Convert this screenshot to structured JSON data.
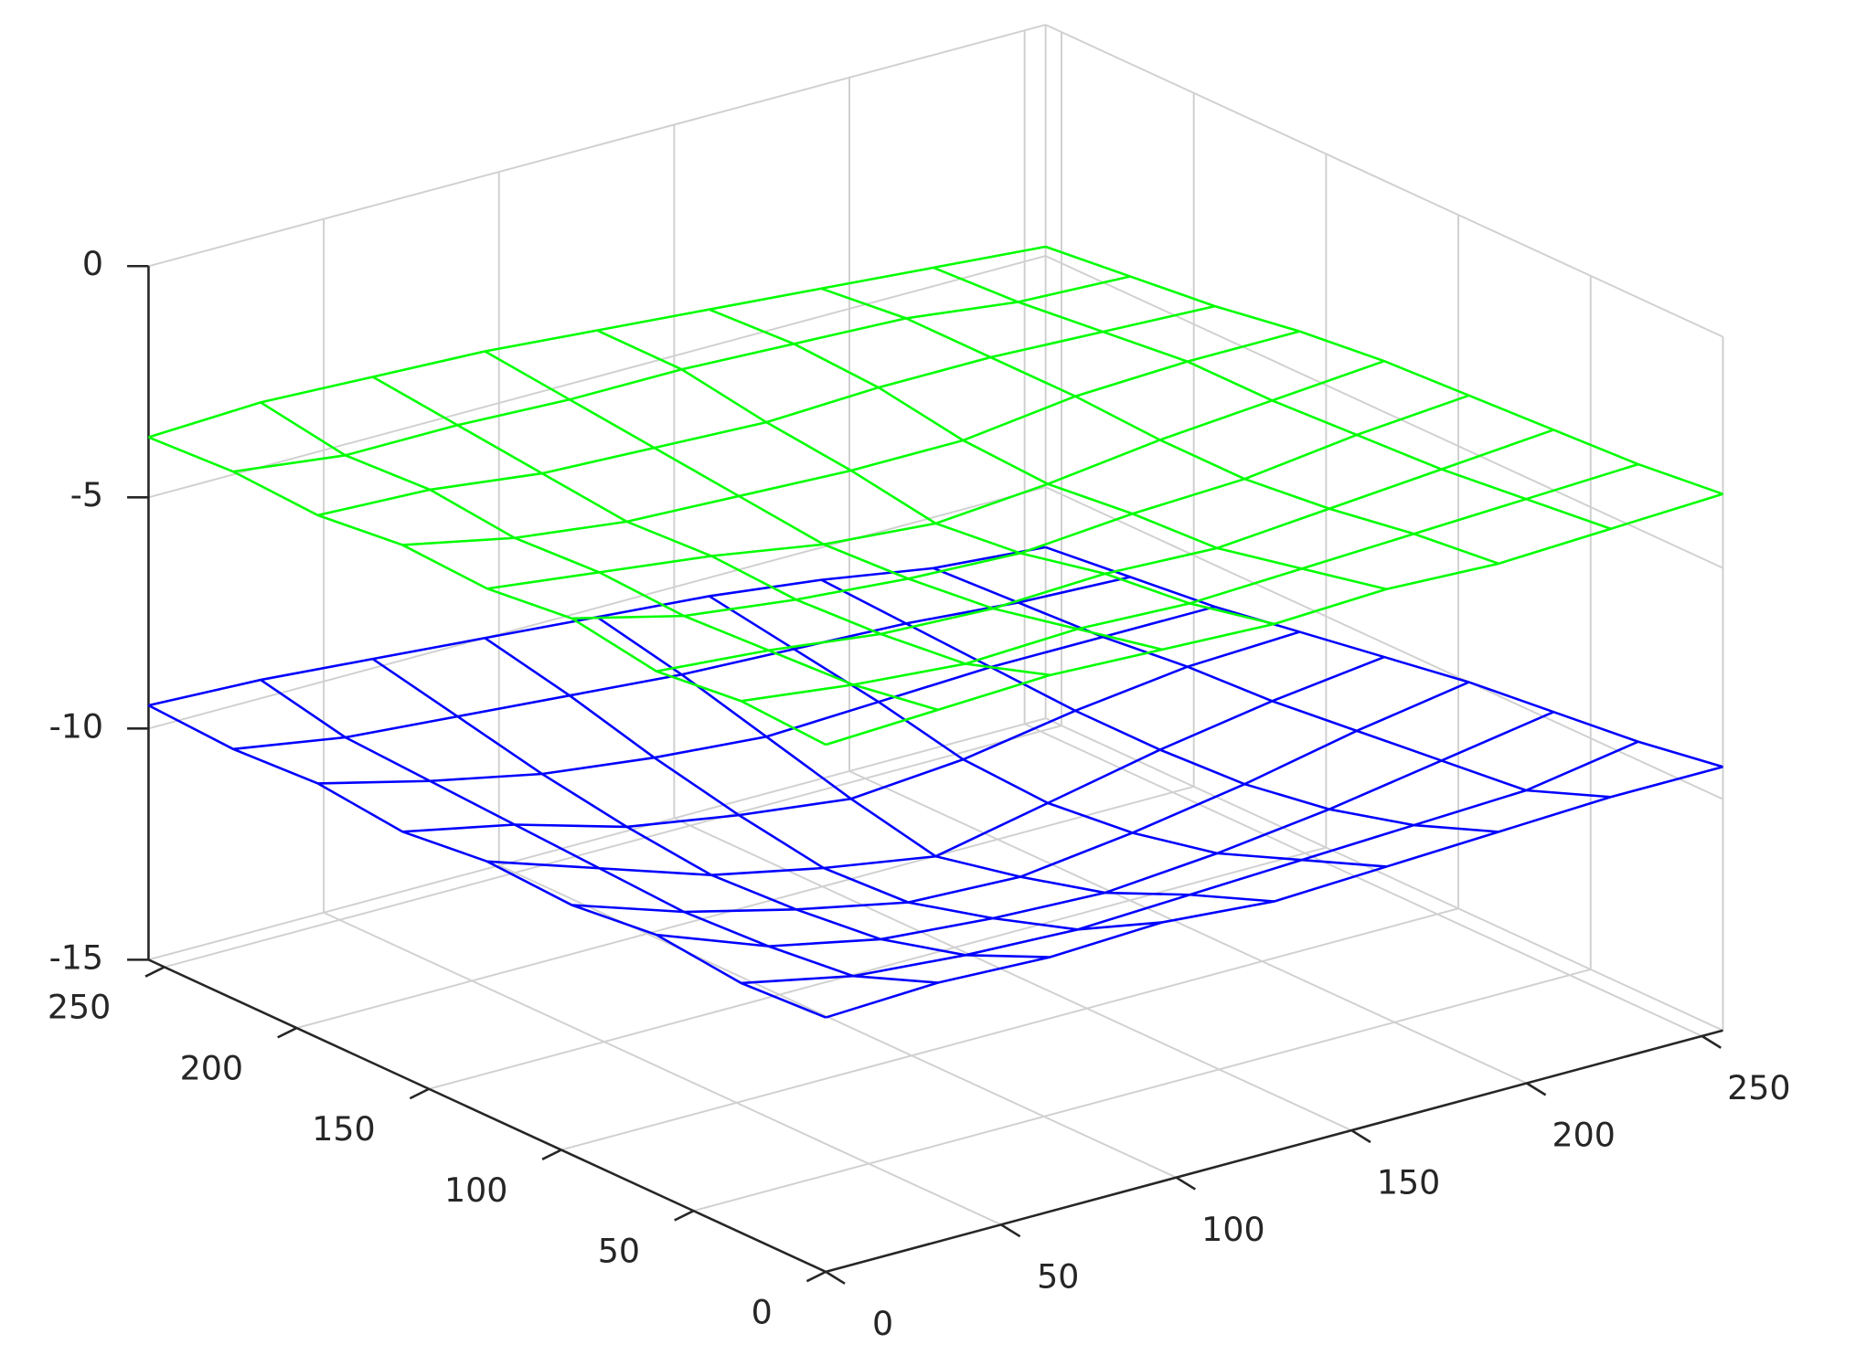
{
  "chart_data": {
    "type": "surface",
    "x": [
      0,
      32,
      64,
      96,
      128,
      160,
      192,
      224,
      256
    ],
    "y": [
      0,
      32,
      64,
      96,
      128,
      160,
      192,
      224,
      256
    ],
    "xlim": [
      0,
      256
    ],
    "ylim": [
      0,
      256
    ],
    "zlim": [
      -15,
      0
    ],
    "xticks": [
      0,
      50,
      100,
      150,
      200,
      250
    ],
    "yticks": [
      0,
      50,
      100,
      150,
      200,
      250
    ],
    "zticks": [
      -15,
      -10,
      -5,
      0
    ],
    "grid": true,
    "series": [
      {
        "color": "#00ff00",
        "z": [
          [
            -3.6,
            -3.5,
            -3.7,
            -3.4,
            -3.6,
            -3.5,
            -3.7,
            -3.6,
            -3.7
          ],
          [
            -3.5,
            -3.8,
            -3.9,
            -4.0,
            -3.9,
            -4.0,
            -3.8,
            -3.9,
            -3.6
          ],
          [
            -3.4,
            -4.0,
            -4.2,
            -4.3,
            -4.2,
            -4.3,
            -4.1,
            -3.9,
            -3.7
          ],
          [
            -3.5,
            -3.9,
            -4.3,
            -4.5,
            -4.6,
            -4.4,
            -4.2,
            -4.0,
            -3.8
          ],
          [
            -3.6,
            -4.0,
            -4.2,
            -4.6,
            -4.8,
            -4.5,
            -4.3,
            -4.0,
            -4.0
          ],
          [
            -3.5,
            -3.9,
            -4.3,
            -4.4,
            -4.6,
            -4.5,
            -4.2,
            -4.1,
            -4.2
          ],
          [
            -3.6,
            -3.8,
            -4.1,
            -4.3,
            -4.3,
            -4.2,
            -4.2,
            -4.2,
            -4.4
          ],
          [
            -3.5,
            -3.7,
            -3.9,
            -4.0,
            -4.1,
            -4.1,
            -4.3,
            -4.5,
            -4.6
          ],
          [
            -3.4,
            -3.6,
            -3.7,
            -3.8,
            -3.9,
            -4.1,
            -4.4,
            -4.6,
            -4.8
          ]
        ]
      },
      {
        "color": "#0000ff",
        "z": [
          [
            -9.5,
            -9.6,
            -9.4,
            -9.6,
            -9.5,
            -9.7,
            -9.5,
            -9.6,
            -9.5
          ],
          [
            -9.4,
            -10.1,
            -10.3,
            -10.4,
            -10.3,
            -10.2,
            -10.1,
            -10.0,
            -9.6
          ],
          [
            -9.5,
            -10.3,
            -10.8,
            -11.0,
            -11.1,
            -10.9,
            -10.6,
            -10.2,
            -9.8
          ],
          [
            -9.4,
            -10.4,
            -11.0,
            -11.5,
            -11.6,
            -11.3,
            -10.9,
            -10.4,
            -10.0
          ],
          [
            -9.6,
            -10.3,
            -11.1,
            -11.6,
            -12.0,
            -11.6,
            -11.1,
            -10.6,
            -10.2
          ],
          [
            -9.5,
            -10.2,
            -10.9,
            -11.3,
            -11.5,
            -11.4,
            -11.0,
            -10.7,
            -10.4
          ],
          [
            -9.4,
            -10.1,
            -10.6,
            -10.9,
            -11.0,
            -11.0,
            -10.9,
            -10.8,
            -10.7
          ],
          [
            -9.3,
            -10.0,
            -10.2,
            -10.4,
            -10.6,
            -10.7,
            -10.9,
            -11.0,
            -11.1
          ],
          [
            -9.3,
            -9.6,
            -9.8,
            -10.0,
            -10.3,
            -10.6,
            -10.9,
            -11.1,
            -11.3
          ]
        ]
      }
    ]
  }
}
